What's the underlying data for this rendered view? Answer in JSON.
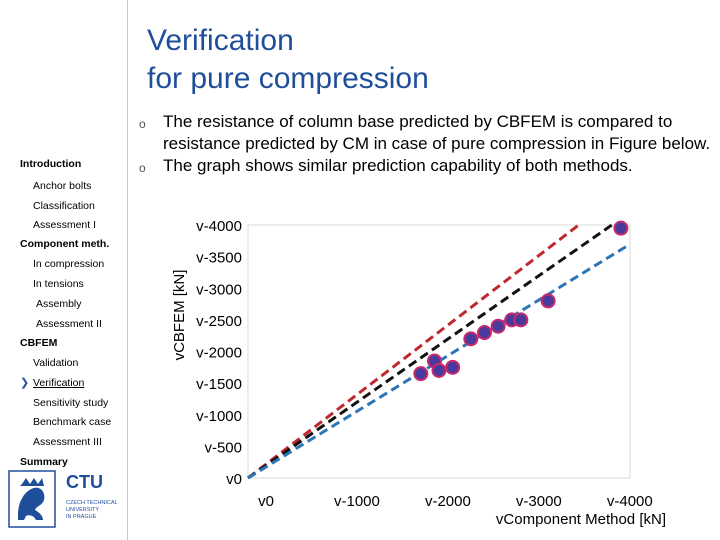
{
  "slide": {
    "title_line1": "Verification",
    "title_line2": "for pure compression",
    "bullets": [
      "The resistance of column base predicted by CBFEM is compared to resistance predicted by CM in case of pure compression in Figure below.",
      "The graph shows similar prediction capability of both methods."
    ],
    "bullet_mark": "o"
  },
  "nav": {
    "items": [
      {
        "label": "Introduction",
        "level": "section"
      },
      {
        "label": "Anchor bolts",
        "level": "sub"
      },
      {
        "label": "Classification",
        "level": "sub"
      },
      {
        "label": "Assessment I",
        "level": "sub"
      },
      {
        "label": "Component meth.",
        "level": "section"
      },
      {
        "label": "In compression",
        "level": "sub"
      },
      {
        "label": "In tensions",
        "level": "sub"
      },
      {
        "label": "Assembly",
        "level": "sub2"
      },
      {
        "label": "Assessment II",
        "level": "sub2"
      },
      {
        "label": "CBFEM",
        "level": "section"
      },
      {
        "label": "Validation",
        "level": "sub"
      },
      {
        "label": "Verification",
        "level": "sub",
        "active": true
      },
      {
        "label": "Sensitivity study",
        "level": "sub"
      },
      {
        "label": "Benchmark case",
        "level": "sub"
      },
      {
        "label": "Assessment III",
        "level": "sub"
      },
      {
        "label": "Summary",
        "level": "section"
      }
    ]
  },
  "logo": {
    "text": "CTU",
    "subtext": [
      "CZECH TECHNICAL",
      "UNIVERSITY",
      "IN PRAGUE"
    ],
    "color": "#1f4e9a"
  },
  "chart_data": {
    "type": "scatter",
    "xlabel": "Component Method [kN]",
    "ylabel": "CBFEM [kN]",
    "label_prefix": "v",
    "x_ticks": [
      "0",
      "-1000",
      "-2000",
      "-3000",
      "-4000"
    ],
    "y_ticks": [
      "0",
      "-500",
      "-1000",
      "-1500",
      "-2000",
      "-2500",
      "-3000",
      "-3500",
      "-4000"
    ],
    "xlim": [
      0,
      -4200
    ],
    "ylim": [
      0,
      -4000
    ],
    "points": [
      {
        "x": -1900,
        "y": -1650
      },
      {
        "x": -2050,
        "y": -1850
      },
      {
        "x": -2100,
        "y": -1700
      },
      {
        "x": -2250,
        "y": -1750
      },
      {
        "x": -2450,
        "y": -2200
      },
      {
        "x": -2600,
        "y": -2300
      },
      {
        "x": -2750,
        "y": -2400
      },
      {
        "x": -2900,
        "y": -2500
      },
      {
        "x": -3000,
        "y": -2500
      },
      {
        "x": -3300,
        "y": -2800
      },
      {
        "x": -4100,
        "y": -3950
      }
    ],
    "lines": [
      {
        "color": "#c0282d",
        "slope": 1.1
      },
      {
        "color": "#111111",
        "slope": 1.0
      },
      {
        "color": "#2e75b6",
        "slope": 0.88
      }
    ],
    "point_color": "#4b3a9e",
    "point_stroke": "#c62a6c"
  }
}
